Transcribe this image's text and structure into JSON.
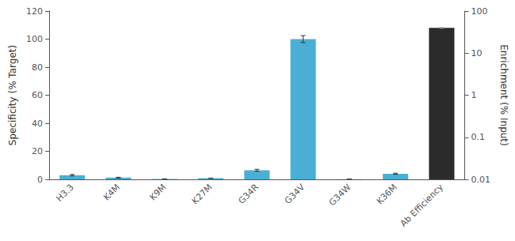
{
  "chart_data": {
    "type": "bar",
    "categories": [
      "H3.3",
      "K4M",
      "K9M",
      "K27M",
      "G34R",
      "G34V",
      "G34W",
      "K36M",
      "Ab Efficiency"
    ],
    "series": [
      {
        "color": "#4AAFD5",
        "values": [
          3.0,
          1.2,
          0.3,
          0.8,
          6.5,
          100.0,
          0.2,
          4.0,
          null
        ],
        "errors": [
          0.5,
          0.3,
          0.05,
          0.1,
          0.7,
          2.5,
          0.05,
          0.4,
          null
        ]
      },
      {
        "axis": "y2",
        "color": "#2B2B2B",
        "values": [
          null,
          null,
          null,
          null,
          null,
          null,
          null,
          null,
          40.0
        ],
        "errors": [
          null,
          null,
          null,
          null,
          null,
          null,
          null,
          null,
          1.0
        ]
      }
    ],
    "ylabel": "Specificity (% Target)",
    "y2label": "Enrichment (% Input)",
    "ylim": [
      0,
      120
    ],
    "yticks": [
      0,
      20,
      40,
      60,
      80,
      100,
      120
    ],
    "y2lim": [
      0.01,
      100
    ],
    "y2ticks": [
      0.01,
      0.1,
      1,
      10,
      100
    ],
    "log": "y2",
    "grid": false
  }
}
